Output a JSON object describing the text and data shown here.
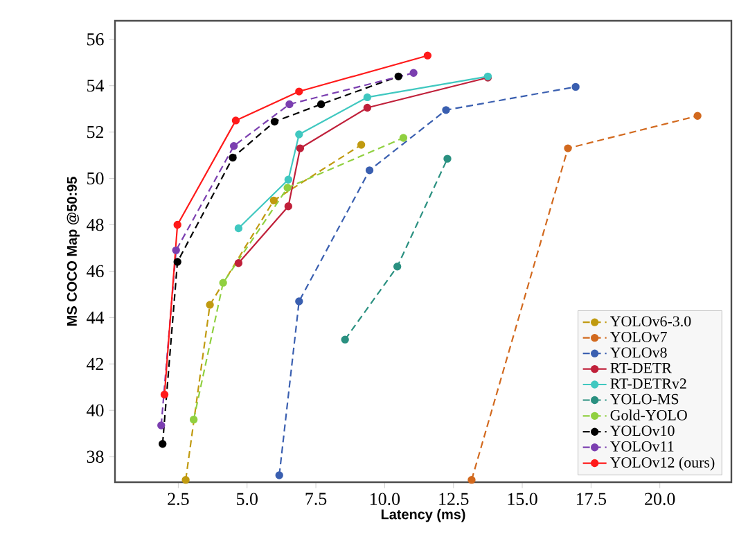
{
  "chart_data": {
    "type": "line",
    "xlabel": "Latency (ms)",
    "ylabel": "MS COCO Map @50:95",
    "xlim": [
      0.2,
      22.6
    ],
    "ylim": [
      36.9,
      56.8
    ],
    "xticks": [
      {
        "value": 2.5,
        "label": "2.5"
      },
      {
        "value": 5.0,
        "label": "5.0"
      },
      {
        "value": 7.5,
        "label": "7.5"
      },
      {
        "value": 10.0,
        "label": "10.0"
      },
      {
        "value": 12.5,
        "label": "12.5"
      },
      {
        "value": 15.0,
        "label": "15.0"
      },
      {
        "value": 17.5,
        "label": "17.5"
      },
      {
        "value": 20.0,
        "label": "20.0"
      }
    ],
    "yticks": [
      38,
      40,
      42,
      44,
      46,
      48,
      50,
      52,
      54,
      56
    ],
    "marker": "circle",
    "legend": "bottom right",
    "grid": false,
    "series": [
      {
        "name": "YOLOv6-3.0",
        "color": "#c09a10",
        "line_style": "dashed",
        "x": [
          2.77,
          3.65,
          5.97,
          9.15
        ],
        "values": [
          37.0,
          44.55,
          49.05,
          51.45
        ]
      },
      {
        "name": "YOLOv7",
        "color": "#d2691e",
        "line_style": "dashed",
        "x": [
          13.16,
          16.66,
          21.37
        ],
        "values": [
          37.0,
          51.3,
          52.7
        ]
      },
      {
        "name": "YOLOv8",
        "color": "#3a5fb0",
        "line_style": "dashed",
        "x": [
          6.17,
          6.89,
          9.45,
          12.23,
          16.94
        ],
        "values": [
          37.2,
          44.7,
          50.35,
          52.95,
          53.95
        ]
      },
      {
        "name": "RT-DETR",
        "color": "#c0203a",
        "line_style": "solid",
        "x": [
          4.69,
          6.5,
          6.93,
          9.37,
          13.75
        ],
        "values": [
          46.35,
          48.8,
          51.3,
          53.05,
          54.35
        ]
      },
      {
        "name": "RT-DETRv2",
        "color": "#40c8c0",
        "line_style": "solid",
        "x": [
          4.69,
          6.5,
          6.89,
          9.37,
          13.75
        ],
        "values": [
          47.85,
          49.95,
          51.9,
          53.5,
          54.4
        ]
      },
      {
        "name": "YOLO-MS",
        "color": "#2a9080",
        "line_style": "dashed",
        "x": [
          8.56,
          10.46,
          12.28
        ],
        "values": [
          43.05,
          46.2,
          50.85
        ]
      },
      {
        "name": "Gold-YOLO",
        "color": "#90d040",
        "line_style": "dashed",
        "x": [
          3.06,
          4.13,
          6.47,
          10.68
        ],
        "values": [
          39.6,
          45.5,
          49.6,
          51.75
        ]
      },
      {
        "name": "YOLOv10",
        "color": "#000000",
        "line_style": "dashed",
        "x": [
          1.93,
          2.47,
          4.48,
          6.0,
          7.69,
          10.5
        ],
        "values": [
          38.55,
          46.4,
          50.9,
          52.45,
          53.2,
          54.4
        ]
      },
      {
        "name": "YOLOv11",
        "color": "#7b3fb0",
        "line_style": "dashed",
        "x": [
          1.88,
          2.42,
          4.52,
          6.54,
          11.05
        ],
        "values": [
          39.35,
          46.9,
          51.4,
          53.2,
          54.55
        ]
      },
      {
        "name": "YOLOv12 (ours)",
        "color": "#ff1a1a",
        "line_style": "solid",
        "x": [
          2.0,
          2.47,
          4.59,
          6.89,
          11.56
        ],
        "values": [
          40.68,
          48.0,
          52.5,
          53.75,
          55.3
        ]
      }
    ]
  }
}
